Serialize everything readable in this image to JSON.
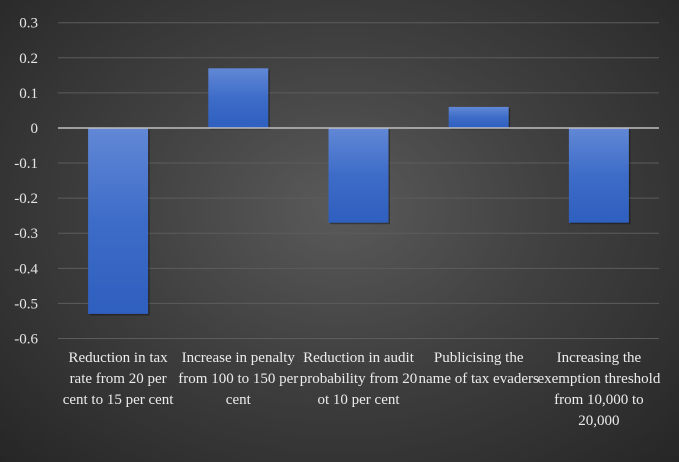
{
  "chart_data": {
    "type": "bar",
    "title": "",
    "xlabel": "",
    "ylabel": "",
    "categories": [
      "Reduction in tax rate from 20 per cent to 15 per cent",
      "Increase in penalty from 100 to 150 per cent",
      "Reduction in audit probability from 20 ot 10 per cent",
      "Publicising the name of tax evaders",
      "Increasing the exemption threshold from 10,000 to 20,000"
    ],
    "values": [
      -0.53,
      0.17,
      -0.27,
      0.06,
      -0.27
    ],
    "ylim": [
      -0.6,
      0.3
    ],
    "yticks": [
      "0.3",
      "0.2",
      "0.1",
      "0",
      "-0.1",
      "-0.2",
      "-0.3",
      "-0.4",
      "-0.5",
      "-0.6"
    ],
    "grid": true,
    "legend": "none",
    "colors": {
      "bar": "#4472c4",
      "background": "#404040",
      "gridline": "#5c5c5c",
      "zero_line": "#bfbfbf",
      "text": "#e6e6e6"
    }
  }
}
